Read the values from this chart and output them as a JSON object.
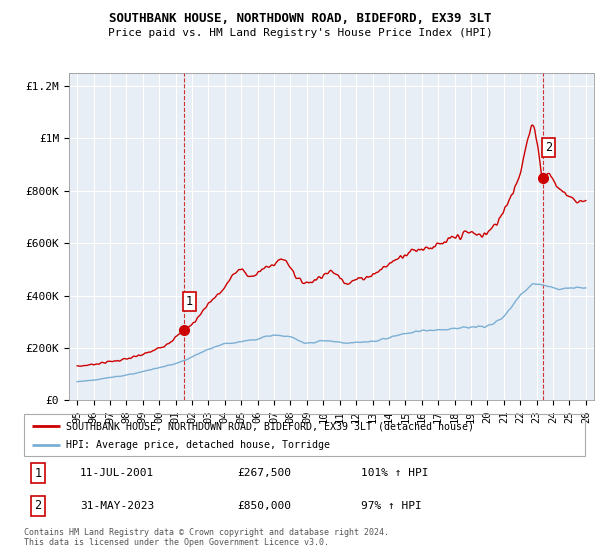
{
  "title": "SOUTHBANK HOUSE, NORTHDOWN ROAD, BIDEFORD, EX39 3LT",
  "subtitle": "Price paid vs. HM Land Registry's House Price Index (HPI)",
  "legend_line1": "SOUTHBANK HOUSE, NORTHDOWN ROAD, BIDEFORD, EX39 3LT (detached house)",
  "legend_line2": "HPI: Average price, detached house, Torridge",
  "annotation1": [
    "1",
    "11-JUL-2001",
    "£267,500",
    "101% ↑ HPI"
  ],
  "annotation2": [
    "2",
    "31-MAY-2023",
    "£850,000",
    "97% ↑ HPI"
  ],
  "footer": "Contains HM Land Registry data © Crown copyright and database right 2024.\nThis data is licensed under the Open Government Licence v3.0.",
  "red_color": "#cc0000",
  "blue_color": "#7bafd4",
  "marker1_year": 2001.53,
  "marker1_value": 267500,
  "marker2_year": 2023.41,
  "marker2_value": 850000,
  "ylim": [
    0,
    1250000
  ],
  "xlim": [
    1994.5,
    2026.5
  ],
  "yticks": [
    0,
    200000,
    400000,
    600000,
    800000,
    1000000,
    1200000
  ],
  "ytick_labels": [
    "£0",
    "£200K",
    "£400K",
    "£600K",
    "£800K",
    "£1M",
    "£1.2M"
  ],
  "xtick_years": [
    1995,
    1996,
    1997,
    1998,
    1999,
    2000,
    2001,
    2002,
    2003,
    2004,
    2005,
    2006,
    2007,
    2008,
    2009,
    2010,
    2011,
    2012,
    2013,
    2014,
    2015,
    2016,
    2017,
    2018,
    2019,
    2020,
    2021,
    2022,
    2023,
    2024,
    2025,
    2026
  ],
  "bg_color": "#e8eef5"
}
